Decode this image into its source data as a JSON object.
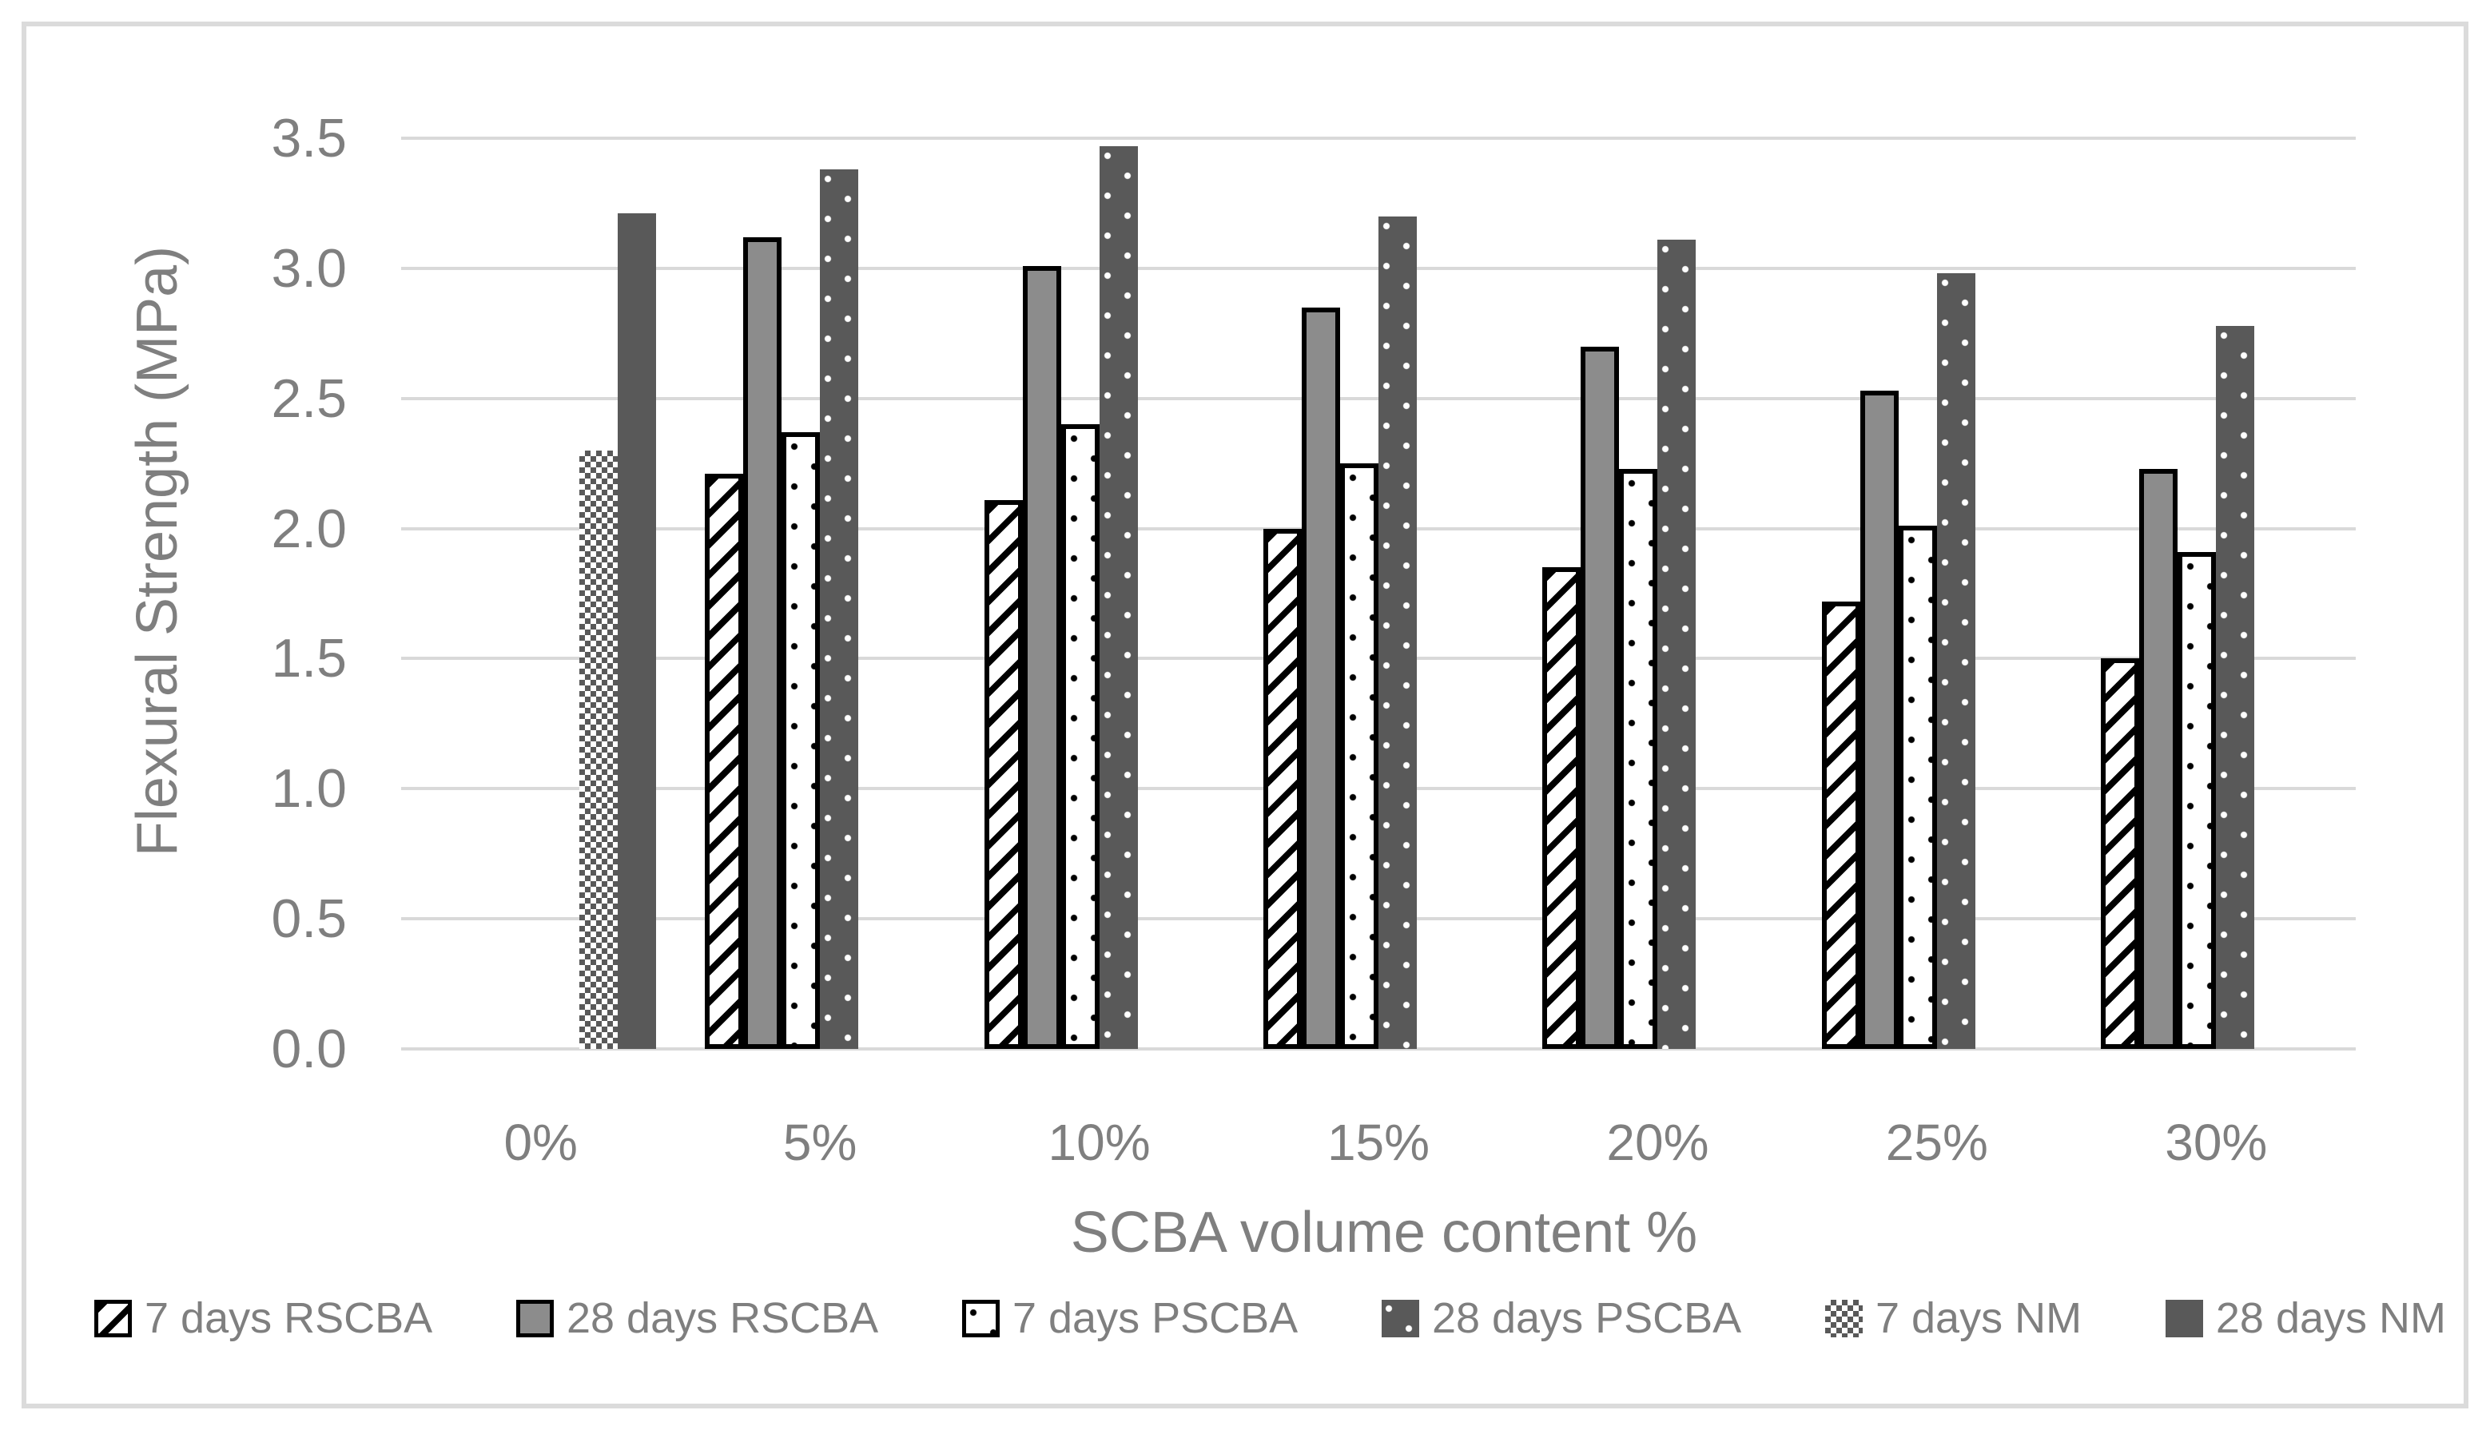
{
  "chart_data": {
    "type": "bar",
    "title": "",
    "xlabel": "SCBA volume content %",
    "ylabel": "Flexural Strength (MPa)",
    "categories": [
      "0%",
      "5%",
      "10%",
      "15%",
      "20%",
      "25%",
      "30%"
    ],
    "y_ticks": [
      "3.5",
      "3.0",
      "2.5",
      "2.0",
      "1.5",
      "1.0",
      "0.5",
      "0.0"
    ],
    "ylim": [
      0,
      3.5
    ],
    "grid": true,
    "legend_position": "bottom",
    "series": [
      {
        "name": "7 days RSCBA",
        "pattern": "hatch",
        "values": [
          null,
          2.21,
          2.11,
          2.0,
          1.85,
          1.72,
          1.5
        ]
      },
      {
        "name": "28 days RSCBA",
        "pattern": "solid-gray",
        "values": [
          null,
          3.12,
          3.01,
          2.85,
          2.7,
          2.53,
          2.23
        ]
      },
      {
        "name": "7 days PSCBA",
        "pattern": "white-dots",
        "values": [
          null,
          2.37,
          2.4,
          2.25,
          2.23,
          2.01,
          1.91
        ]
      },
      {
        "name": "28 days PSCBA",
        "pattern": "dark-dots",
        "values": [
          null,
          3.38,
          3.47,
          3.2,
          3.11,
          2.98,
          2.78
        ]
      },
      {
        "name": "7 days NM",
        "pattern": "checker",
        "values": [
          2.3,
          null,
          null,
          null,
          null,
          null,
          null
        ]
      },
      {
        "name": "28 days NM",
        "pattern": "solid-dark",
        "values": [
          3.21,
          null,
          null,
          null,
          null,
          null,
          null
        ]
      }
    ],
    "colors": {
      "bar_gray": "#8C8C8C",
      "bar_dark": "#595959",
      "pattern_black": "#000000",
      "gridline": "#D9D9D9",
      "text": "#7F7F7F",
      "frame": "#DBDBDB"
    }
  }
}
